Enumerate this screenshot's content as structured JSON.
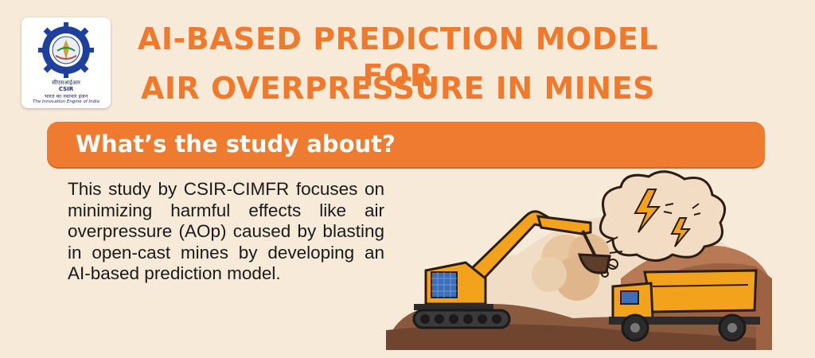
{
  "logo": {
    "hindi_name": "सीएसआईआर",
    "org": "CSIR",
    "tagline_hindi": "भारत का नवाचार इंजन",
    "tagline_en": "The Innovation Engine of India"
  },
  "title": {
    "line1": "AI-BASED PREDICTION MODEL FOR",
    "line2": "AIR OVERPRESSURE IN MINES"
  },
  "section": {
    "heading": "What’s the study about?",
    "body": "This study by CSIR-CIMFR focuses on minimizing harmful effects like air overpressure (AOp) caused by blasting in open-cast mines by developing an AI-based prediction model."
  },
  "colors": {
    "background": "#f7ead9",
    "accent": "#ee7b2f",
    "excavator": "#f2a31b",
    "text": "#1a1a1a"
  },
  "illustration": {
    "icons": [
      "excavator-icon",
      "dump-truck-icon",
      "dust-cloud-icon",
      "lightning-icon"
    ]
  }
}
